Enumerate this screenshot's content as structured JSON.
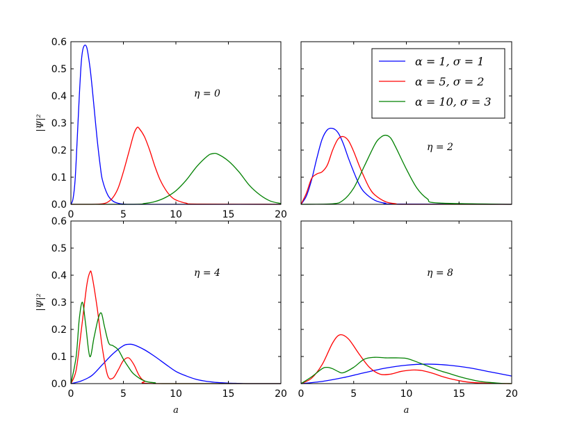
{
  "chart_data": [
    {
      "type": "line",
      "panel": "top-left",
      "annotation": "η = 0",
      "xlabel": "",
      "ylabel": "|Ψ|²",
      "xlim": [
        0,
        20
      ],
      "ylim": [
        0,
        0.6
      ],
      "xticks": [
        "0",
        "5",
        "10",
        "15",
        "20"
      ],
      "yticks": [
        "0.0",
        "0.1",
        "0.2",
        "0.3",
        "0.4",
        "0.5",
        "0.6"
      ],
      "series": [
        {
          "name": "α = 1, σ = 1",
          "color": "#0000ff",
          "x": [
            0,
            0.2,
            0.4,
            0.6,
            0.8,
            1.0,
            1.2,
            1.5,
            1.8,
            2.0,
            2.2,
            2.5,
            2.8,
            3.0,
            3.5,
            4.0,
            4.5,
            5.0,
            5.5,
            6,
            20
          ],
          "y": [
            0,
            0.02,
            0.09,
            0.24,
            0.4,
            0.53,
            0.58,
            0.58,
            0.51,
            0.44,
            0.36,
            0.24,
            0.14,
            0.09,
            0.035,
            0.012,
            0.004,
            0.001,
            0,
            0,
            0
          ]
        },
        {
          "name": "α = 5, σ = 2",
          "color": "#ff0000",
          "x": [
            0,
            2,
            3,
            3.5,
            4,
            4.5,
            5,
            5.5,
            6,
            6.3,
            6.5,
            7,
            7.5,
            8,
            8.5,
            9,
            9.5,
            10,
            11,
            12,
            20
          ],
          "y": [
            0,
            0,
            0.002,
            0.008,
            0.025,
            0.06,
            0.12,
            0.19,
            0.26,
            0.283,
            0.28,
            0.25,
            0.2,
            0.14,
            0.09,
            0.055,
            0.03,
            0.016,
            0.004,
            0.001,
            0
          ]
        },
        {
          "name": "α = 10, σ = 3",
          "color": "#008000",
          "x": [
            0,
            6,
            7,
            8,
            9,
            10,
            11,
            12,
            13,
            13.5,
            14,
            15,
            16,
            17,
            18,
            19,
            20
          ],
          "y": [
            0,
            0,
            0.003,
            0.01,
            0.025,
            0.05,
            0.09,
            0.14,
            0.178,
            0.187,
            0.185,
            0.16,
            0.12,
            0.07,
            0.035,
            0.012,
            0.003
          ]
        }
      ]
    },
    {
      "type": "line",
      "panel": "top-right",
      "annotation": "η = 2",
      "xlabel": "",
      "ylabel": "",
      "xlim": [
        0,
        20
      ],
      "ylim": [
        0,
        0.6
      ],
      "legend": {
        "position": "top-right",
        "entries": [
          "α = 1, σ = 1",
          "α = 5, σ = 2",
          "α = 10, σ = 3"
        ]
      },
      "series": [
        {
          "name": "α = 1, σ = 1",
          "color": "#0000ff",
          "x": [
            0,
            0.5,
            1,
            1.5,
            2,
            2.5,
            3,
            3.5,
            4,
            4.5,
            5,
            5.5,
            6,
            7,
            8,
            9,
            20
          ],
          "y": [
            0,
            0.03,
            0.09,
            0.17,
            0.24,
            0.275,
            0.28,
            0.265,
            0.225,
            0.17,
            0.12,
            0.075,
            0.045,
            0.015,
            0.004,
            0.001,
            0
          ]
        },
        {
          "name": "α = 5, σ = 2",
          "color": "#ff0000",
          "x": [
            0,
            0.5,
            1,
            1.5,
            2,
            2.5,
            3,
            3.5,
            4,
            4.5,
            5,
            5.5,
            6,
            6.5,
            7,
            8,
            9,
            10,
            20
          ],
          "y": [
            0,
            0.04,
            0.095,
            0.112,
            0.12,
            0.145,
            0.2,
            0.24,
            0.25,
            0.235,
            0.195,
            0.145,
            0.1,
            0.06,
            0.035,
            0.01,
            0.002,
            0,
            0
          ]
        },
        {
          "name": "α = 10, σ = 3",
          "color": "#008000",
          "x": [
            0,
            3,
            4,
            5,
            6,
            7,
            7.5,
            8,
            8.5,
            9,
            10,
            11,
            12,
            13,
            20
          ],
          "y": [
            0,
            0.002,
            0.015,
            0.06,
            0.14,
            0.22,
            0.245,
            0.255,
            0.245,
            0.21,
            0.13,
            0.06,
            0.02,
            0.005,
            0
          ]
        }
      ]
    },
    {
      "type": "line",
      "panel": "bottom-left",
      "annotation": "η = 4",
      "xlabel": "a",
      "ylabel": "|Ψ|²",
      "xlim": [
        0,
        20
      ],
      "ylim": [
        0,
        0.6
      ],
      "xticks": [
        "0",
        "5",
        "10",
        "15",
        "20"
      ],
      "yticks": [
        "0.0",
        "0.1",
        "0.2",
        "0.3",
        "0.4",
        "0.5",
        "0.6"
      ],
      "series": [
        {
          "name": "α = 1, σ = 1",
          "color": "#0000ff",
          "x": [
            0,
            1,
            2,
            3,
            4,
            5,
            5.5,
            6,
            7,
            8,
            9,
            10,
            11,
            12,
            13,
            14,
            15,
            16,
            17,
            20
          ],
          "y": [
            0,
            0.01,
            0.03,
            0.07,
            0.11,
            0.14,
            0.145,
            0.143,
            0.125,
            0.1,
            0.072,
            0.045,
            0.028,
            0.015,
            0.008,
            0.004,
            0.002,
            0.001,
            0,
            0
          ]
        },
        {
          "name": "α = 5, σ = 2",
          "color": "#ff0000",
          "x": [
            0,
            0.5,
            1,
            1.5,
            1.8,
            2,
            2.5,
            3,
            3.5,
            4,
            4.5,
            5,
            5.5,
            6,
            6.5,
            7,
            8,
            20
          ],
          "y": [
            0,
            0.05,
            0.2,
            0.36,
            0.41,
            0.4,
            0.28,
            0.13,
            0.03,
            0.02,
            0.05,
            0.085,
            0.095,
            0.07,
            0.03,
            0.01,
            0,
            0
          ]
        },
        {
          "name": "α = 10, σ = 3",
          "color": "#008000",
          "x": [
            0,
            0.5,
            0.8,
            1.1,
            1.4,
            1.8,
            2.2,
            2.6,
            2.9,
            3.2,
            3.6,
            4.0,
            4.5,
            5,
            5.5,
            6,
            7,
            8,
            9,
            20
          ],
          "y": [
            0,
            0.1,
            0.24,
            0.3,
            0.22,
            0.1,
            0.17,
            0.24,
            0.26,
            0.21,
            0.15,
            0.14,
            0.125,
            0.09,
            0.06,
            0.035,
            0.01,
            0.003,
            0,
            0
          ]
        }
      ]
    },
    {
      "type": "line",
      "panel": "bottom-right",
      "annotation": "η = 8",
      "xlabel": "a",
      "ylabel": "",
      "xlim": [
        0,
        20
      ],
      "ylim": [
        0,
        0.6
      ],
      "xticks": [
        "0",
        "5",
        "10",
        "15",
        "20"
      ],
      "series": [
        {
          "name": "α = 1, σ = 1",
          "color": "#0000ff",
          "x": [
            0,
            2,
            4,
            6,
            8,
            10,
            12,
            14,
            16,
            18,
            20
          ],
          "y": [
            0,
            0.008,
            0.022,
            0.04,
            0.057,
            0.068,
            0.072,
            0.068,
            0.058,
            0.043,
            0.028
          ]
        },
        {
          "name": "α = 5, σ = 2",
          "color": "#ff0000",
          "x": [
            0,
            1,
            2,
            3,
            3.7,
            4.5,
            5.5,
            6.5,
            7.5,
            8.5,
            9.5,
            10.5,
            11,
            11.5,
            12.5,
            13.5,
            14.5,
            16,
            18,
            20
          ],
          "y": [
            0,
            0.02,
            0.07,
            0.15,
            0.18,
            0.165,
            0.11,
            0.06,
            0.035,
            0.035,
            0.045,
            0.05,
            0.05,
            0.048,
            0.038,
            0.025,
            0.015,
            0.005,
            0.001,
            0
          ]
        },
        {
          "name": "α = 10, σ = 3",
          "color": "#008000",
          "x": [
            0,
            1,
            2,
            2.5,
            3,
            3.5,
            4,
            5,
            6,
            7,
            8,
            9,
            10,
            11,
            12,
            13,
            14,
            15,
            16,
            17,
            18,
            19,
            20
          ],
          "y": [
            0,
            0.025,
            0.055,
            0.06,
            0.055,
            0.045,
            0.04,
            0.06,
            0.09,
            0.097,
            0.095,
            0.095,
            0.093,
            0.08,
            0.065,
            0.05,
            0.038,
            0.026,
            0.016,
            0.008,
            0.004,
            0.001,
            0
          ]
        }
      ]
    }
  ]
}
